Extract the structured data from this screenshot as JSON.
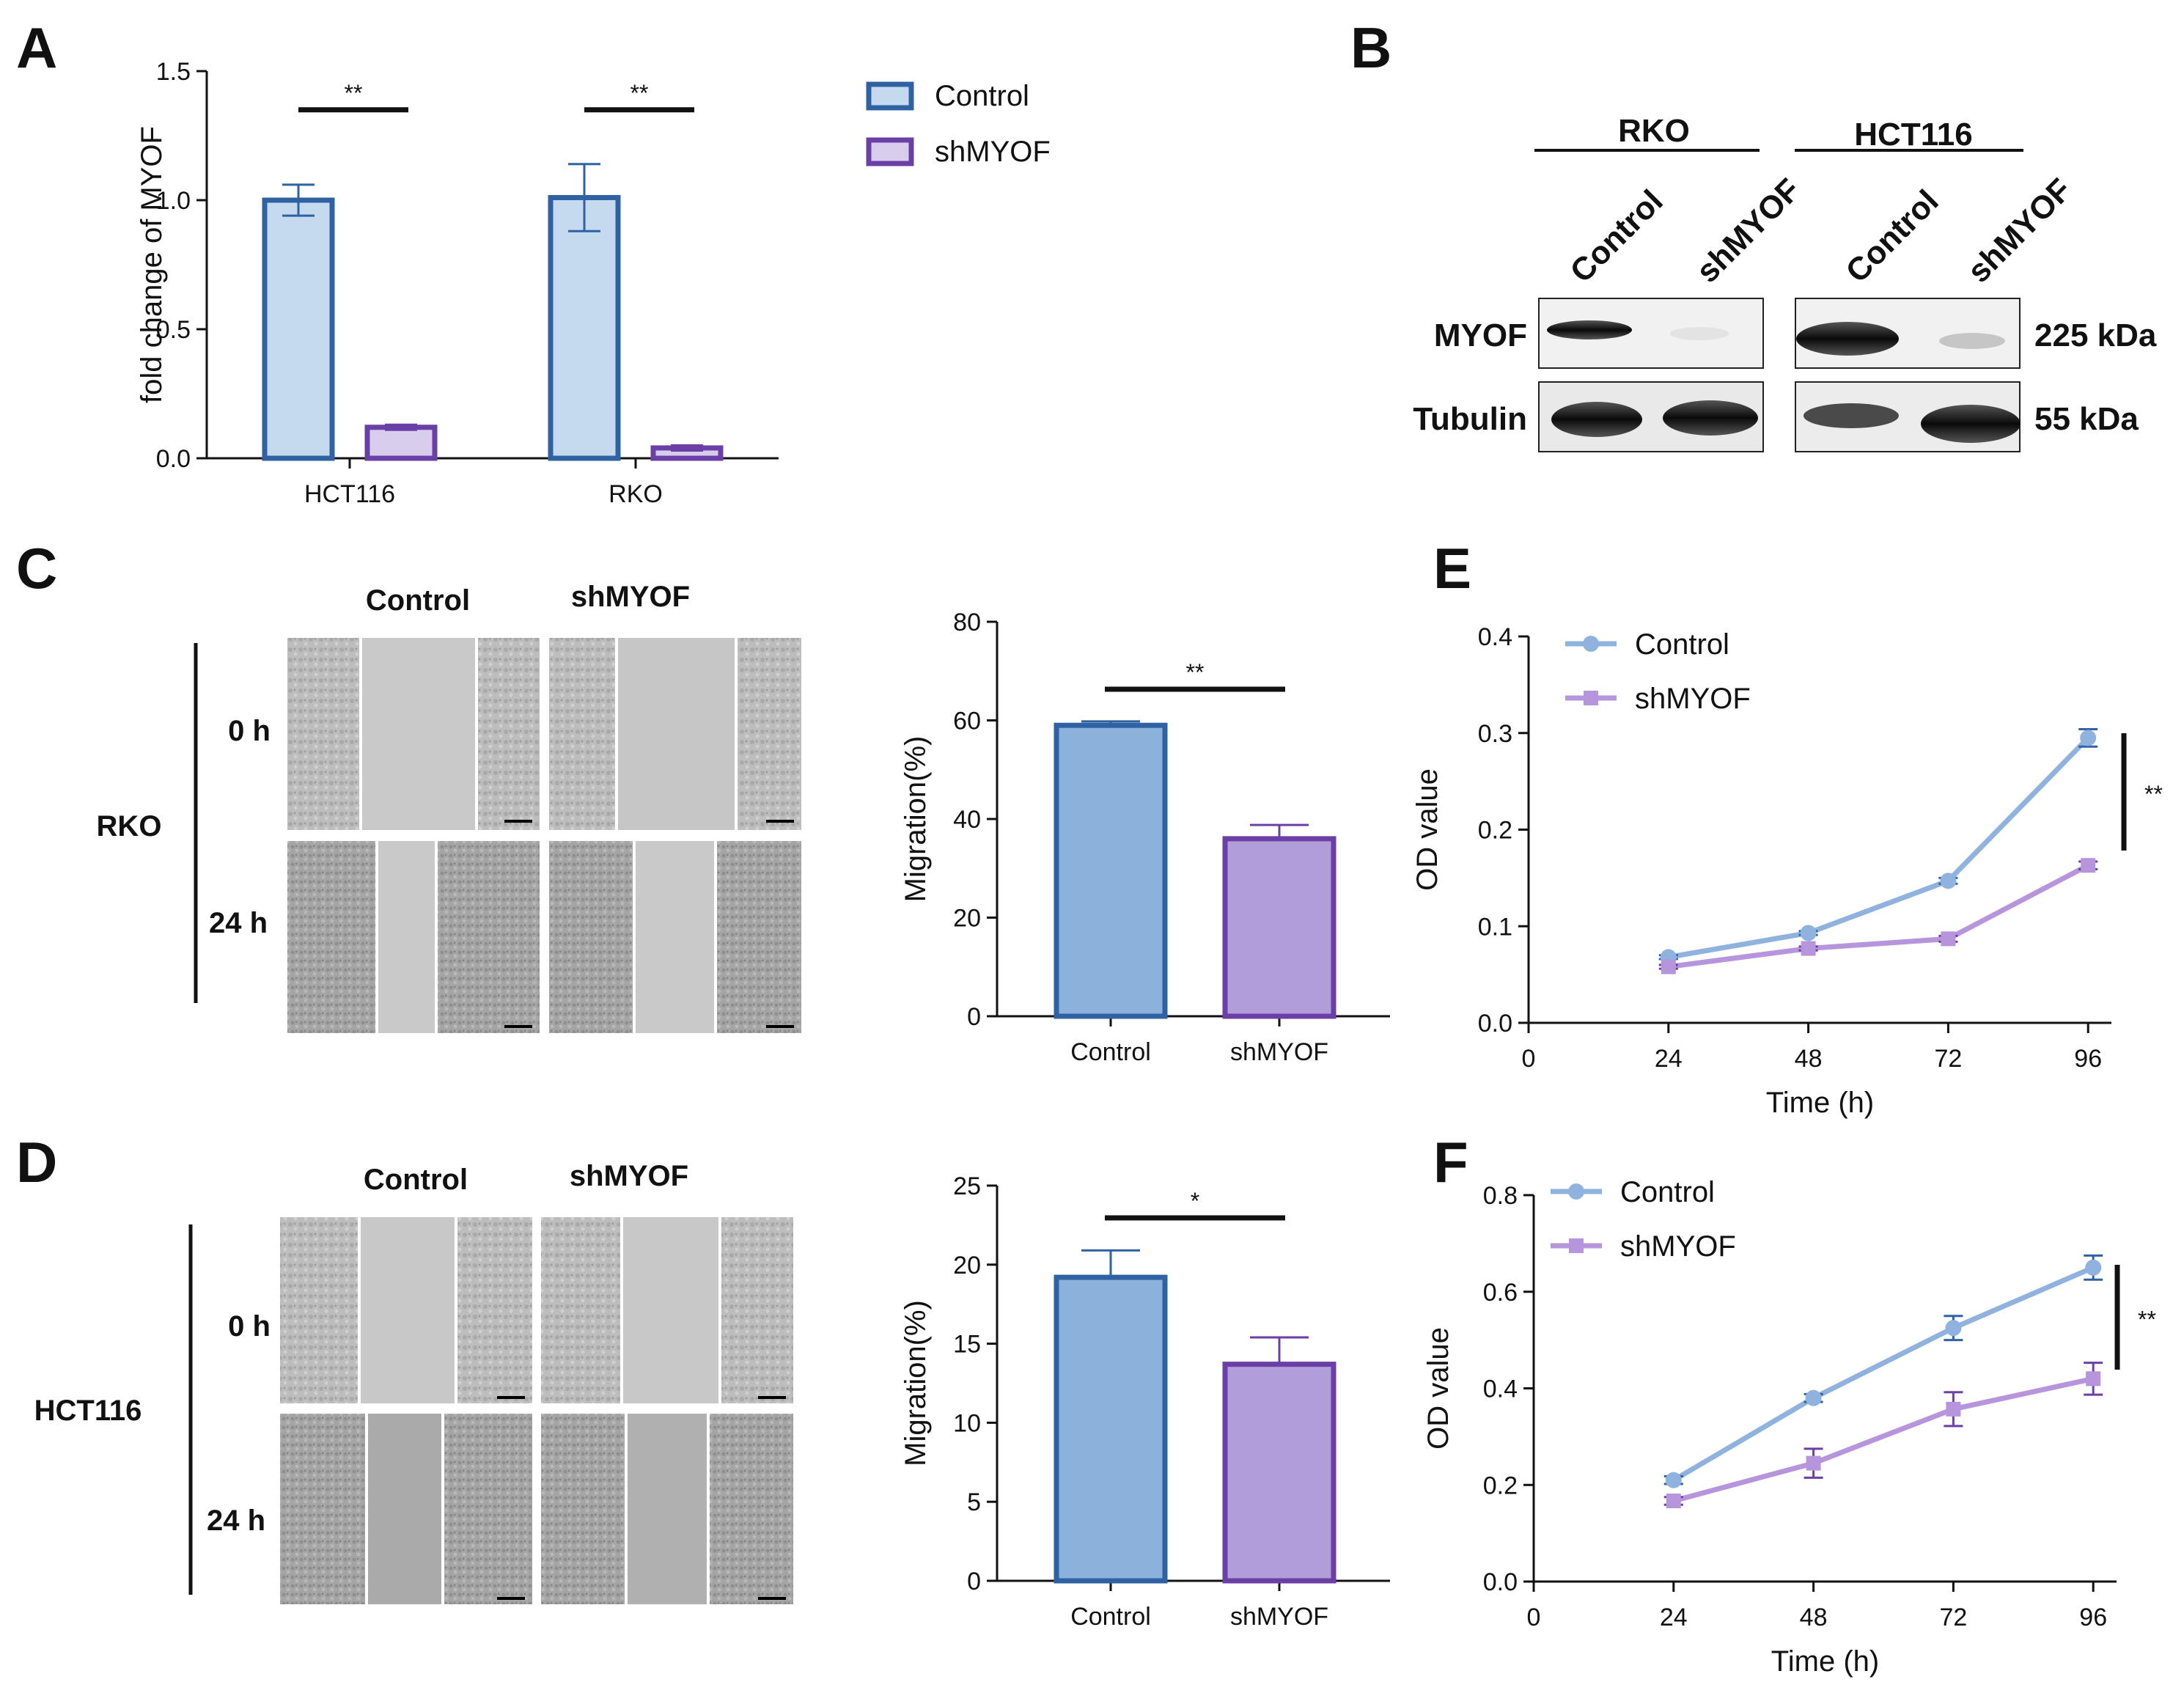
{
  "colors": {
    "control_fill": "#c5d9ef",
    "control_stroke": "#2f62a2",
    "sh_fill": "#d8cdec",
    "sh_stroke": "#6a3fa6",
    "mig_control_fill": "#8cb2dc",
    "mig_sh_fill": "#b29ddb",
    "line_control": "#8fb3de",
    "line_sh": "#b695dd"
  },
  "panels": {
    "A": {
      "label": "A"
    },
    "B": {
      "label": "B"
    },
    "C": {
      "label": "C"
    },
    "D": {
      "label": "D"
    },
    "E": {
      "label": "E"
    },
    "F": {
      "label": "F"
    }
  },
  "chart_data": [
    {
      "id": "A",
      "type": "bar",
      "categories": [
        "HCT116",
        "RKO"
      ],
      "series": [
        {
          "name": "Control",
          "values": [
            1.0,
            1.01
          ],
          "errors": [
            0.06,
            0.13
          ]
        },
        {
          "name": "shMYOF",
          "values": [
            0.12,
            0.04
          ],
          "errors": [
            0.01,
            0.01
          ]
        }
      ],
      "ylabel": "fold change of MYOF",
      "xlabel": "",
      "ylim": [
        0,
        1.5
      ],
      "yticks": [
        "0.0",
        "0.5",
        "1.0",
        "1.5"
      ],
      "significance": [
        "**",
        "**"
      ],
      "legend": "right"
    },
    {
      "id": "C",
      "type": "bar",
      "categories": [
        "Control",
        "shMYOF"
      ],
      "values": [
        59,
        36
      ],
      "errors": [
        0.8,
        2.8
      ],
      "ylabel": "Migration(%)",
      "ylim": [
        0,
        80
      ],
      "yticks": [
        "0",
        "20",
        "40",
        "60",
        "80"
      ],
      "significance": "**"
    },
    {
      "id": "D",
      "type": "bar",
      "categories": [
        "Control",
        "shMYOF"
      ],
      "values": [
        19.2,
        13.7
      ],
      "errors": [
        1.7,
        1.7
      ],
      "ylabel": "Migration(%)",
      "ylim": [
        0,
        25
      ],
      "yticks": [
        "0",
        "5",
        "10",
        "15",
        "20",
        "25"
      ],
      "significance": "*"
    },
    {
      "id": "E",
      "type": "line",
      "x": [
        24,
        48,
        72,
        96
      ],
      "series": [
        {
          "name": "Control",
          "values": [
            0.068,
            0.093,
            0.147,
            0.295
          ],
          "errors": [
            0.002,
            0.002,
            0.003,
            0.009
          ]
        },
        {
          "name": "shMYOF",
          "values": [
            0.058,
            0.077,
            0.087,
            0.163
          ],
          "errors": [
            0.002,
            0.002,
            0.003,
            0.004
          ]
        }
      ],
      "xlabel": "Time (h)",
      "ylabel": "OD value",
      "xlim": [
        0,
        100
      ],
      "ylim": [
        0,
        0.4
      ],
      "xticks": [
        "0",
        "24",
        "48",
        "72",
        "96"
      ],
      "yticks": [
        "0.0",
        "0.1",
        "0.2",
        "0.3",
        "0.4"
      ],
      "significance": "**"
    },
    {
      "id": "F",
      "type": "line",
      "x": [
        24,
        48,
        72,
        96
      ],
      "series": [
        {
          "name": "Control",
          "values": [
            0.21,
            0.38,
            0.525,
            0.65
          ],
          "errors": [
            0.008,
            0.008,
            0.025,
            0.025
          ]
        },
        {
          "name": "shMYOF",
          "values": [
            0.167,
            0.245,
            0.357,
            0.42
          ],
          "errors": [
            0.008,
            0.03,
            0.035,
            0.033
          ]
        }
      ],
      "xlabel": "Time (h)",
      "ylabel": "OD value",
      "xlim": [
        0,
        100
      ],
      "ylim": [
        0,
        0.8
      ],
      "xticks": [
        "0",
        "24",
        "48",
        "72",
        "96"
      ],
      "yticks": [
        "0.0",
        "0.2",
        "0.4",
        "0.6",
        "0.8"
      ],
      "significance": "**"
    }
  ],
  "blot": {
    "groups": [
      "RKO",
      "HCT116"
    ],
    "lanes": [
      "Control",
      "shMYOF",
      "Control",
      "shMYOF"
    ],
    "rows": [
      "MYOF",
      "Tubulin"
    ],
    "sizes": [
      "225 kDa",
      "55 kDa"
    ]
  },
  "scratch_C": {
    "cell_line": "RKO",
    "columns": [
      "Control",
      "shMYOF"
    ],
    "times": [
      "0 h",
      "24 h"
    ]
  },
  "scratch_D": {
    "cell_line": "HCT116",
    "columns": [
      "Control",
      "shMYOF"
    ],
    "times": [
      "0 h",
      "24 h"
    ]
  }
}
